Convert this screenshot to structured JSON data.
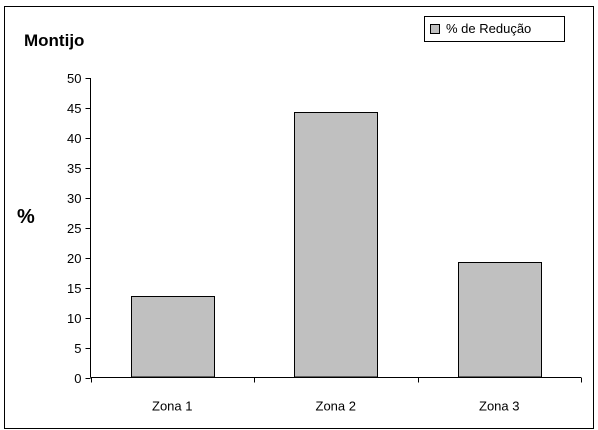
{
  "chart_data": {
    "type": "bar",
    "title": "Montijo",
    "ylabel": "%",
    "xlabel": "",
    "categories": [
      "Zona 1",
      "Zona 2",
      "Zona 3"
    ],
    "series": [
      {
        "name": "% de Redução",
        "values": [
          13.6,
          44.3,
          19.2
        ]
      }
    ],
    "ylim": [
      0,
      50
    ],
    "yticks": [
      0,
      5,
      10,
      15,
      20,
      25,
      30,
      35,
      40,
      45,
      50
    ],
    "grid": false,
    "legend_position": "top-right",
    "colors": {
      "bar_fill": "#c0c0c0",
      "bar_stroke": "#000000",
      "background": "#ffffff"
    }
  }
}
